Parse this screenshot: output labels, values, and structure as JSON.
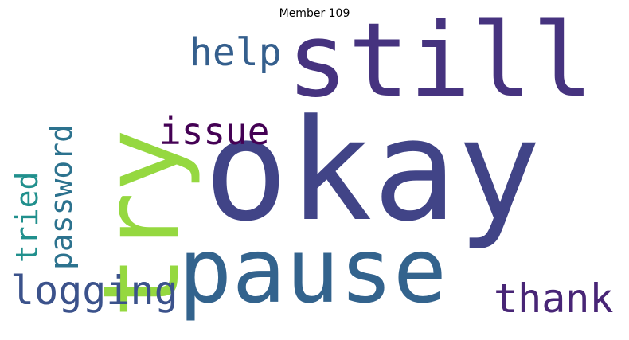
{
  "title": "Member 109",
  "words": {
    "okay": "okay",
    "still": "still",
    "pause": "pause",
    "try": "try",
    "help": "help",
    "issue": "issue",
    "password": "password",
    "tried": "tried",
    "logging": "logging",
    "thank": "thank"
  },
  "colors": {
    "okay": "#414487",
    "still": "#46337f",
    "pause": "#33638d",
    "try": "#95d840",
    "help": "#355f8d",
    "issue": "#440154",
    "password": "#2c728e",
    "tried": "#21908d",
    "logging": "#3b528b",
    "thank": "#482576"
  }
}
